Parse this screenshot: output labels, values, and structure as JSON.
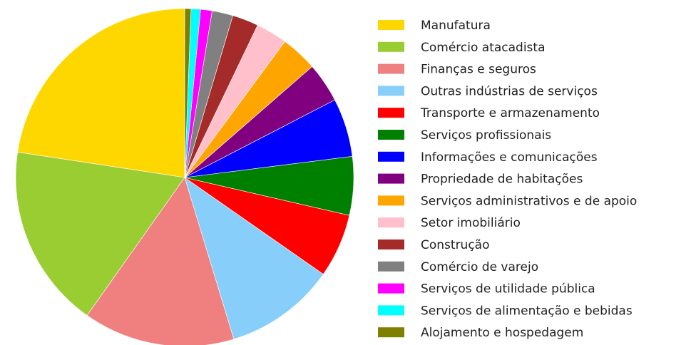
{
  "chart_data": {
    "type": "pie",
    "categories": [
      "Manufatura",
      "Comércio atacadista",
      "Finanças e seguros",
      "Outras indústrias de serviços",
      "Transporte e armazenamento",
      "Serviços profissionais",
      "Informações e comunicações",
      "Propriedade de habitações",
      "Serviços administrativos e de apoio",
      "Setor imobiliário",
      "Construção",
      "Comércio de varejo",
      "Serviços de utilidade pública",
      "Serviços de alimentação e bebidas",
      "Alojamento e hospedagem"
    ],
    "values": [
      22.6,
      17.6,
      14.5,
      10.6,
      6.1,
      5.6,
      5.6,
      3.8,
      3.5,
      3.0,
      2.5,
      2.0,
      1.1,
      0.9,
      0.6
    ],
    "colors": [
      "#ffd700",
      "#9acd32",
      "#f08080",
      "#87cefa",
      "#ff0000",
      "#008000",
      "#0000ff",
      "#800080",
      "#ffa500",
      "#ffc0cb",
      "#a52a2a",
      "#808080",
      "#ff00ff",
      "#00ffff",
      "#808000"
    ],
    "legend": "right"
  }
}
